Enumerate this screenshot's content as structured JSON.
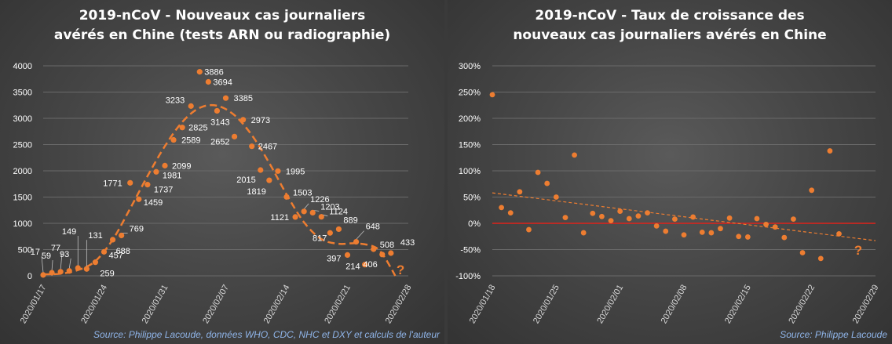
{
  "chart_data": [
    {
      "type": "scatter",
      "title_line1": "2019-nCoV - Nouveaux cas journaliers",
      "title_line2": "avérés en Chine (tests ARN ou radiographie)",
      "source": "Source: Philippe Lacoude, données WHO, CDC, NHC et DXY et calculs de l'auteur",
      "ylim": [
        0,
        4000
      ],
      "yticks": [
        "0",
        "500",
        "1000",
        "1500",
        "2000",
        "2500",
        "3000",
        "3500",
        "4000"
      ],
      "xlim": [
        "2020-01-17",
        "2020-02-28"
      ],
      "xticks": [
        "2020/01/17",
        "2020/01/24",
        "2020/01/31",
        "2020/02/07",
        "2020/02/14",
        "2020/02/21",
        "2020/02/28"
      ],
      "grid": true,
      "point_color": "#ed7d31",
      "trend_color": "#ed7d31",
      "series": [
        {
          "points": [
            {
              "x": "2020-01-17",
              "y": 17,
              "label": "17"
            },
            {
              "x": "2020-01-18",
              "y": 59,
              "label": "59"
            },
            {
              "x": "2020-01-19",
              "y": 77,
              "label": "77"
            },
            {
              "x": "2020-01-20",
              "y": 93,
              "label": "93"
            },
            {
              "x": "2020-01-21",
              "y": 149,
              "label": "149"
            },
            {
              "x": "2020-01-22",
              "y": 131,
              "label": "131"
            },
            {
              "x": "2020-01-23",
              "y": 259,
              "label": "259"
            },
            {
              "x": "2020-01-24",
              "y": 457,
              "label": "457"
            },
            {
              "x": "2020-01-25",
              "y": 688,
              "label": "688"
            },
            {
              "x": "2020-01-26",
              "y": 769,
              "label": "769"
            },
            {
              "x": "2020-01-27",
              "y": 1771,
              "label": "1771"
            },
            {
              "x": "2020-01-28",
              "y": 1459,
              "label": "1459"
            },
            {
              "x": "2020-01-29",
              "y": 1737,
              "label": "1737"
            },
            {
              "x": "2020-01-30",
              "y": 1981,
              "label": "1981"
            },
            {
              "x": "2020-01-31",
              "y": 2099,
              "label": "2099"
            },
            {
              "x": "2020-02-01",
              "y": 2589,
              "label": "2589"
            },
            {
              "x": "2020-02-02",
              "y": 2825,
              "label": "2825"
            },
            {
              "x": "2020-02-03",
              "y": 3233,
              "label": "3233"
            },
            {
              "x": "2020-02-04",
              "y": 3886,
              "label": "3886"
            },
            {
              "x": "2020-02-05",
              "y": 3694,
              "label": "3694"
            },
            {
              "x": "2020-02-06",
              "y": 3143,
              "label": "3143"
            },
            {
              "x": "2020-02-07",
              "y": 3385,
              "label": "3385"
            },
            {
              "x": "2020-02-08",
              "y": 2652,
              "label": "2652"
            },
            {
              "x": "2020-02-09",
              "y": 2973,
              "label": "2973"
            },
            {
              "x": "2020-02-10",
              "y": 2467,
              "label": "2467"
            },
            {
              "x": "2020-02-11",
              "y": 2015,
              "label": "2015"
            },
            {
              "x": "2020-02-12",
              "y": 1819,
              "label": "1819"
            },
            {
              "x": "2020-02-13",
              "y": 1995,
              "label": "1995"
            },
            {
              "x": "2020-02-14",
              "y": 1503,
              "label": "1503"
            },
            {
              "x": "2020-02-15",
              "y": 1121,
              "label": "1121"
            },
            {
              "x": "2020-02-16",
              "y": 1226,
              "label": "1226"
            },
            {
              "x": "2020-02-17",
              "y": 1203,
              "label": "1203"
            },
            {
              "x": "2020-02-18",
              "y": 1124,
              "label": "1124"
            },
            {
              "x": "2020-02-19",
              "y": 817,
              "label": "817"
            },
            {
              "x": "2020-02-20",
              "y": 889,
              "label": "889"
            },
            {
              "x": "2020-02-21",
              "y": 397,
              "label": "397"
            },
            {
              "x": "2020-02-22",
              "y": 648,
              "label": "648"
            },
            {
              "x": "2020-02-23",
              "y": 214,
              "label": "214"
            },
            {
              "x": "2020-02-24",
              "y": 508,
              "label": "508"
            },
            {
              "x": "2020-02-25",
              "y": 406,
              "label": "406"
            },
            {
              "x": "2020-02-26",
              "y": 433,
              "label": "433"
            }
          ]
        }
      ],
      "trend": [
        {
          "x": "2020-01-17",
          "y": 30
        },
        {
          "x": "2020-01-19",
          "y": 40
        },
        {
          "x": "2020-01-21",
          "y": 110
        },
        {
          "x": "2020-01-23",
          "y": 280
        },
        {
          "x": "2020-01-25",
          "y": 690
        },
        {
          "x": "2020-01-27",
          "y": 1280
        },
        {
          "x": "2020-01-29",
          "y": 1900
        },
        {
          "x": "2020-01-31",
          "y": 2470
        },
        {
          "x": "2020-02-02",
          "y": 2930
        },
        {
          "x": "2020-02-04",
          "y": 3200
        },
        {
          "x": "2020-02-06",
          "y": 3240
        },
        {
          "x": "2020-02-08",
          "y": 3060
        },
        {
          "x": "2020-02-10",
          "y": 2680
        },
        {
          "x": "2020-02-12",
          "y": 2150
        },
        {
          "x": "2020-02-14",
          "y": 1550
        },
        {
          "x": "2020-02-16",
          "y": 1020
        },
        {
          "x": "2020-02-18",
          "y": 700
        },
        {
          "x": "2020-02-20",
          "y": 610
        },
        {
          "x": "2020-02-22",
          "y": 620
        },
        {
          "x": "2020-02-24",
          "y": 560
        },
        {
          "x": "2020-02-25",
          "y": 420
        },
        {
          "x": "2020-02-26",
          "y": 150
        },
        {
          "x": "2020-02-26.5",
          "y": 0
        }
      ],
      "question_mark": {
        "x": "2020-02-27",
        "y": 150,
        "text": "?"
      }
    },
    {
      "type": "scatter",
      "title_line1": "2019-nCoV - Taux de croissance des",
      "title_line2": "nouveaux cas journaliers avérés en Chine",
      "source": "Source: Philippe Lacoude",
      "ylim": [
        -100,
        300
      ],
      "yticks": [
        "-100%",
        "-50%",
        "0%",
        "50%",
        "100%",
        "150%",
        "200%",
        "250%",
        "300%"
      ],
      "xlim": [
        "2020-01-18",
        "2020-02-29"
      ],
      "xticks": [
        "2020/01/18",
        "2020/01/25",
        "2020/02/01",
        "2020/02/08",
        "2020/02/15",
        "2020/02/22",
        "2020/02/29"
      ],
      "grid": true,
      "point_color": "#ed7d31",
      "zero_line_color": "#e0221a",
      "series": [
        {
          "points": [
            {
              "x": "2020-01-18",
              "y": 245
            },
            {
              "x": "2020-01-19",
              "y": 30
            },
            {
              "x": "2020-01-20",
              "y": 20
            },
            {
              "x": "2020-01-21",
              "y": 60
            },
            {
              "x": "2020-01-22",
              "y": -12
            },
            {
              "x": "2020-01-23",
              "y": 97
            },
            {
              "x": "2020-01-24",
              "y": 76
            },
            {
              "x": "2020-01-25",
              "y": 50
            },
            {
              "x": "2020-01-26",
              "y": 11
            },
            {
              "x": "2020-01-27",
              "y": 130
            },
            {
              "x": "2020-01-28",
              "y": -18
            },
            {
              "x": "2020-01-29",
              "y": 19
            },
            {
              "x": "2020-01-30",
              "y": 13
            },
            {
              "x": "2020-01-31",
              "y": 5
            },
            {
              "x": "2020-02-01",
              "y": 23
            },
            {
              "x": "2020-02-02",
              "y": 9
            },
            {
              "x": "2020-02-03",
              "y": 14
            },
            {
              "x": "2020-02-04",
              "y": 20
            },
            {
              "x": "2020-02-05",
              "y": -5
            },
            {
              "x": "2020-02-06",
              "y": -15
            },
            {
              "x": "2020-02-07",
              "y": 8
            },
            {
              "x": "2020-02-08",
              "y": -22
            },
            {
              "x": "2020-02-09",
              "y": 12
            },
            {
              "x": "2020-02-10",
              "y": -17
            },
            {
              "x": "2020-02-11",
              "y": -18
            },
            {
              "x": "2020-02-12",
              "y": -10
            },
            {
              "x": "2020-02-13",
              "y": 10
            },
            {
              "x": "2020-02-14",
              "y": -25
            },
            {
              "x": "2020-02-15",
              "y": -26
            },
            {
              "x": "2020-02-16",
              "y": 9
            },
            {
              "x": "2020-02-17",
              "y": -2
            },
            {
              "x": "2020-02-18",
              "y": -7
            },
            {
              "x": "2020-02-19",
              "y": -27
            },
            {
              "x": "2020-02-20",
              "y": 8
            },
            {
              "x": "2020-02-21",
              "y": -56
            },
            {
              "x": "2020-02-22",
              "y": 63
            },
            {
              "x": "2020-02-23",
              "y": -67
            },
            {
              "x": "2020-02-24",
              "y": 138
            },
            {
              "x": "2020-02-25",
              "y": -20
            }
          ]
        }
      ],
      "trend": [
        {
          "x": "2020-01-18",
          "y": 58
        },
        {
          "x": "2020-02-29",
          "y": -33
        }
      ],
      "question_mark": {
        "x": "2020-02-27",
        "y": -48,
        "text": "?"
      }
    }
  ]
}
